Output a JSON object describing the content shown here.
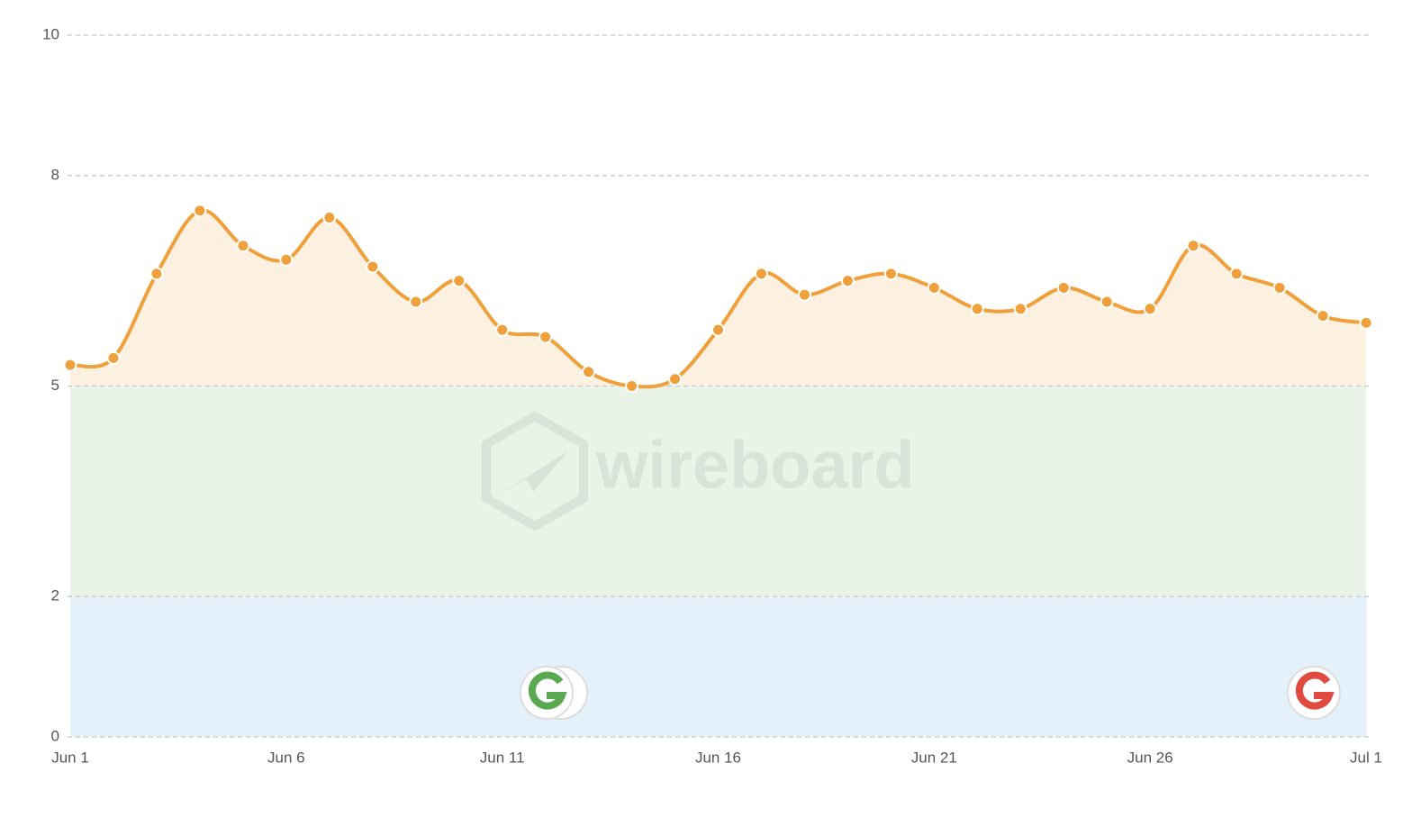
{
  "chart_data": {
    "type": "line",
    "categories": [
      "Jun 1",
      null,
      null,
      null,
      null,
      "Jun 6",
      null,
      null,
      null,
      null,
      "Jun 11",
      null,
      null,
      null,
      null,
      "Jun 16",
      null,
      null,
      null,
      null,
      "Jun 21",
      null,
      null,
      null,
      null,
      "Jun 26",
      null,
      null,
      null,
      null,
      "Jul 1"
    ],
    "series": [
      {
        "color": "#f0a03a",
        "values": [
          5.3,
          5.4,
          6.6,
          7.5,
          7.0,
          6.8,
          7.4,
          6.7,
          6.2,
          6.5,
          5.8,
          5.7,
          5.2,
          5.0,
          5.1,
          5.8,
          6.6,
          6.3,
          6.5,
          6.6,
          6.4,
          6.1,
          6.1,
          6.4,
          6.2,
          6.1,
          7.0,
          6.6,
          6.4,
          6.0,
          5.9
        ]
      }
    ],
    "ylim": [
      0,
      10
    ],
    "yticks": [
      0,
      2,
      5,
      8,
      10
    ],
    "grid": true,
    "bands": [
      {
        "from": 0,
        "to": 2,
        "color": "#e4f0fa"
      },
      {
        "from": 2,
        "to": 5,
        "color": "#e9f3e7"
      }
    ],
    "area_color": "#fcf1e1",
    "watermark": "wireboard"
  }
}
